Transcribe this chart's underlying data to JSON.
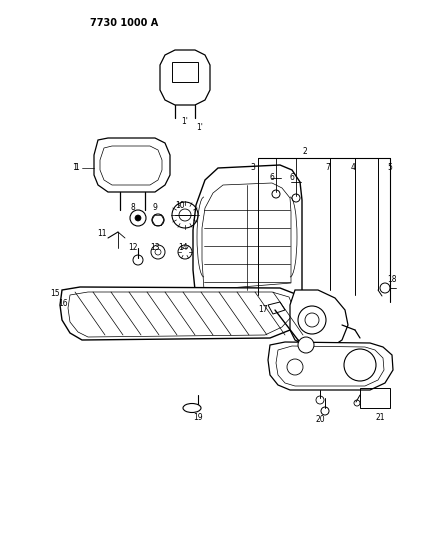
{
  "title": "7730 1000 A",
  "bg_color": "#ffffff",
  "line_color": "#000000",
  "fig_width": 4.28,
  "fig_height": 5.33,
  "dpi": 100
}
